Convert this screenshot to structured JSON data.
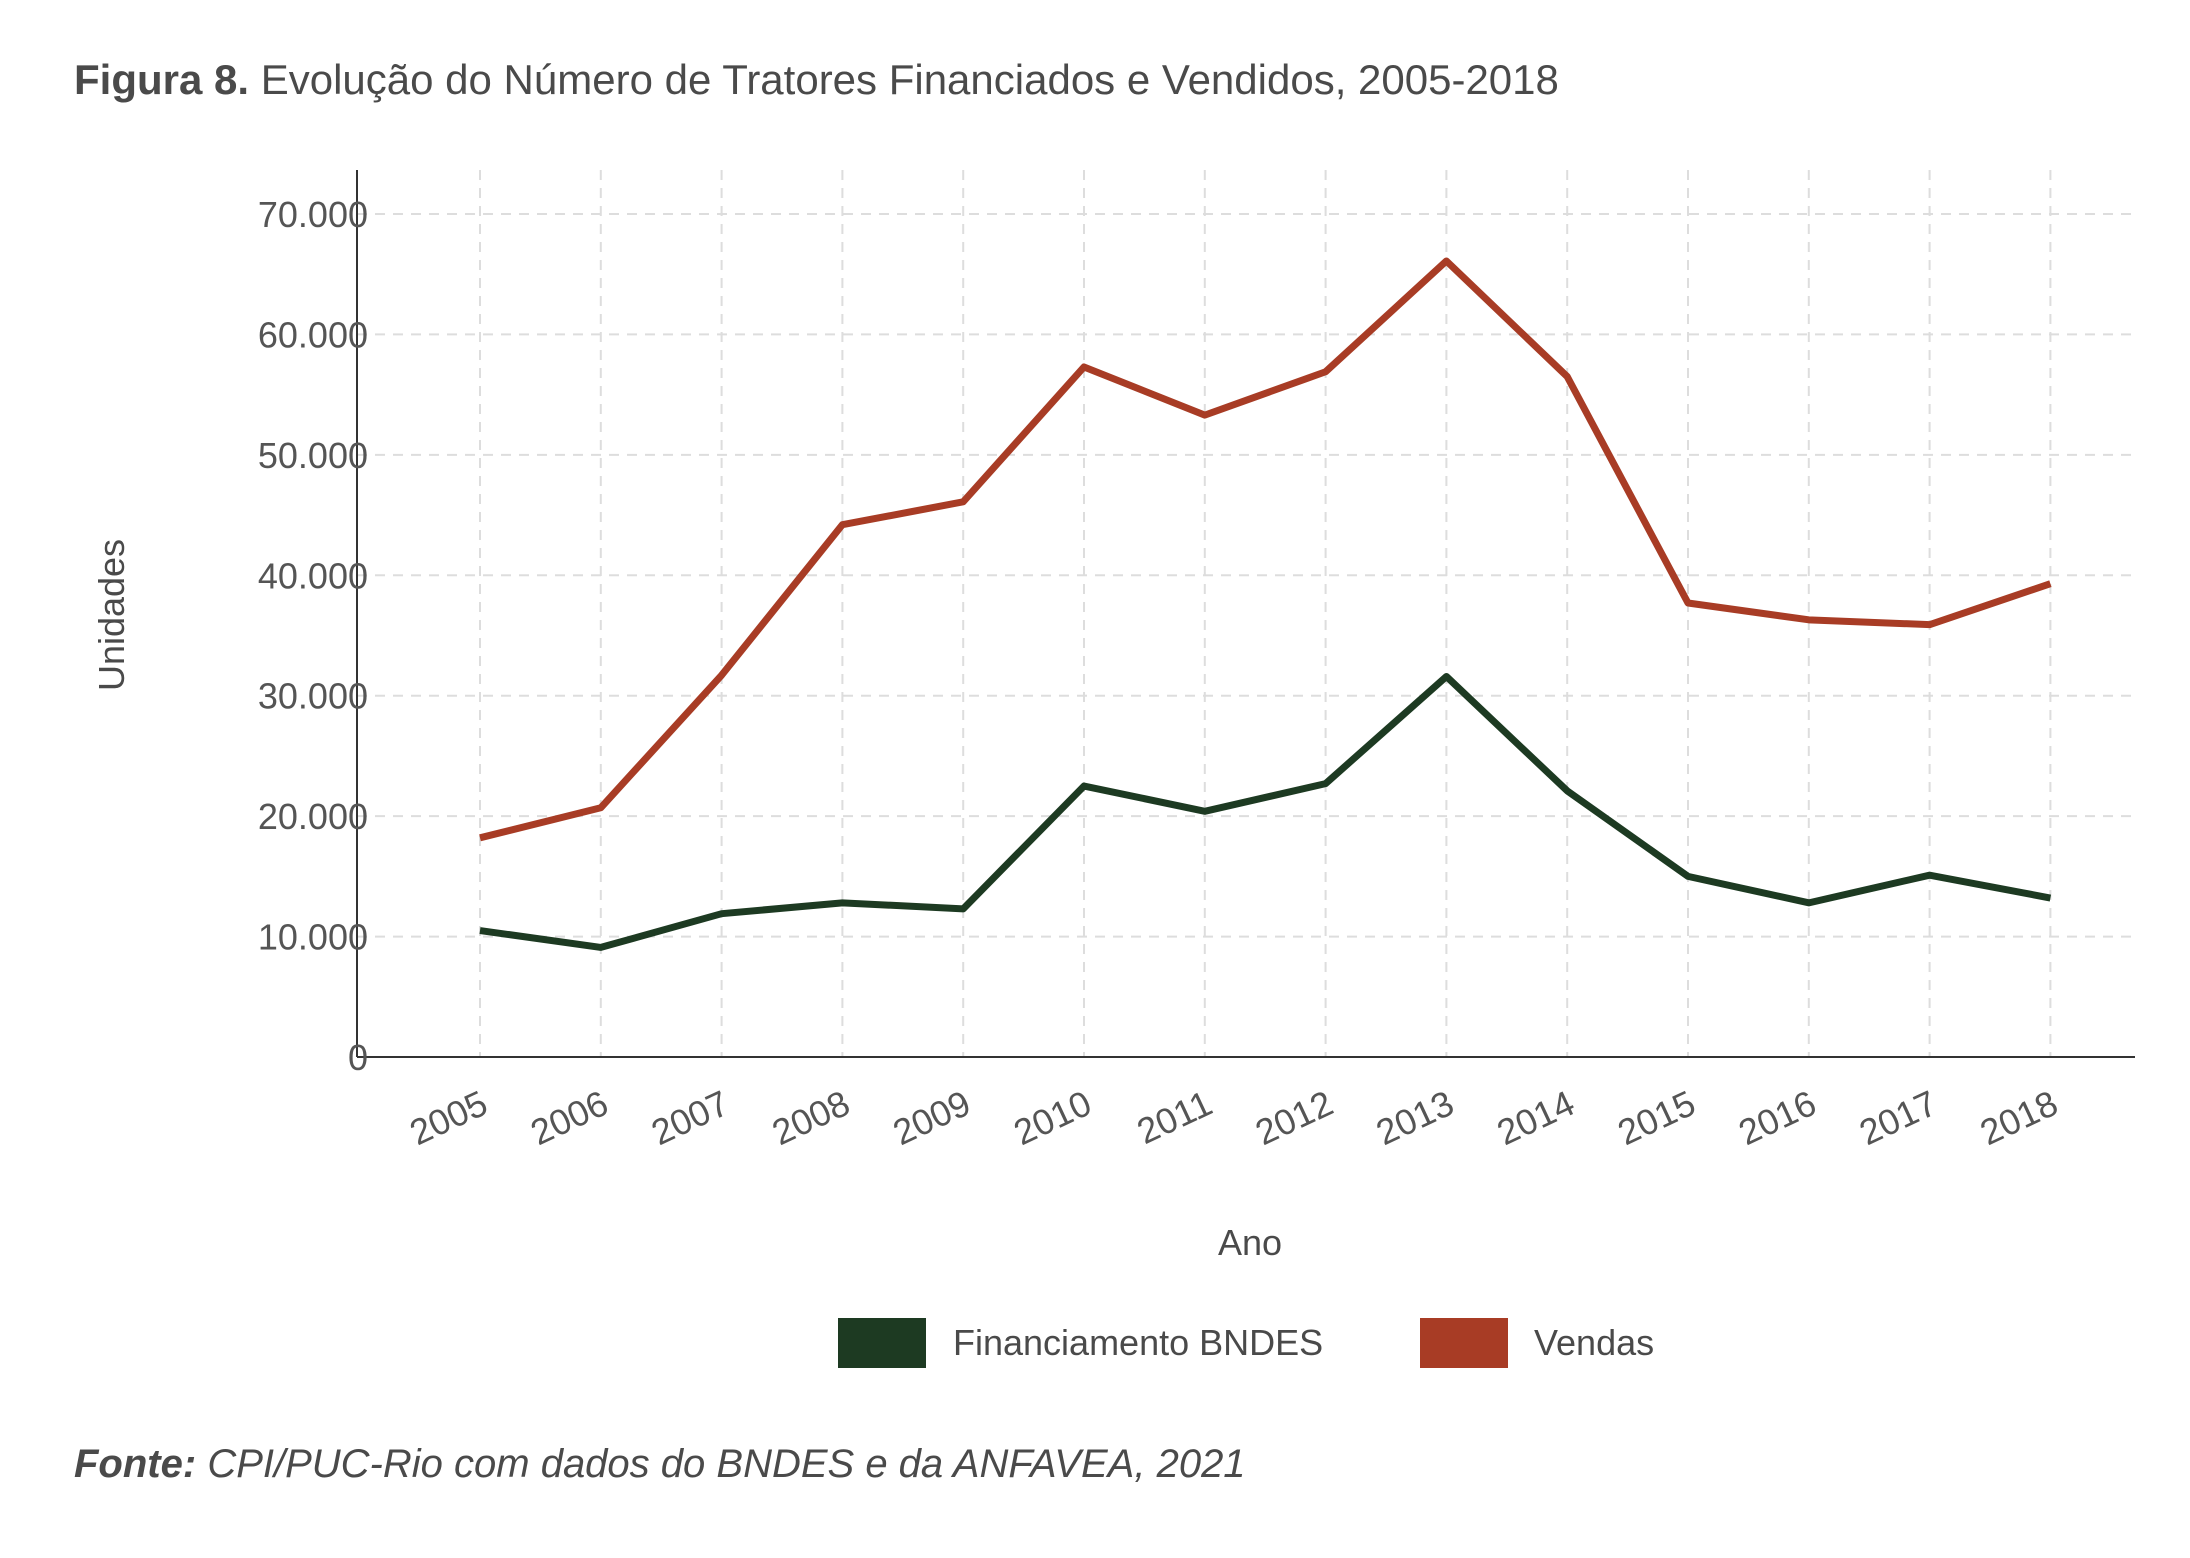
{
  "title": {
    "label": "Figura 8.",
    "text": "Evolução do Número de Tratores Financiados e Vendidos, 2005-2018"
  },
  "source": {
    "label": "Fonte:",
    "text": "CPI/PUC-Rio com dados do BNDES e da ANFAVEA, 2021"
  },
  "chart_data": {
    "type": "line",
    "xlabel": "Ano",
    "ylabel": "Unidades",
    "ylim": [
      0,
      70000
    ],
    "yticks": [
      0,
      10000,
      20000,
      30000,
      40000,
      50000,
      60000,
      70000
    ],
    "ytick_labels": [
      "0",
      "10.000",
      "20.000",
      "30.000",
      "40.000",
      "50.000",
      "60.000",
      "70.000"
    ],
    "x": [
      "2005",
      "2006",
      "2007",
      "2008",
      "2009",
      "2010",
      "2011",
      "2012",
      "2013",
      "2014",
      "2015",
      "2016",
      "2017",
      "2018"
    ],
    "grid": true,
    "legend_position": "bottom",
    "series": [
      {
        "name": "Financiamento BNDES",
        "color": "#1d3a22",
        "values": [
          10500,
          9100,
          11900,
          12800,
          12300,
          22500,
          20400,
          22700,
          31600,
          22100,
          15000,
          12800,
          15100,
          13200
        ]
      },
      {
        "name": "Vendas",
        "color": "#a83c25",
        "values": [
          18200,
          20700,
          31700,
          44200,
          46100,
          57300,
          53300,
          56900,
          66100,
          56500,
          37700,
          36300,
          35900,
          39300
        ]
      }
    ]
  }
}
